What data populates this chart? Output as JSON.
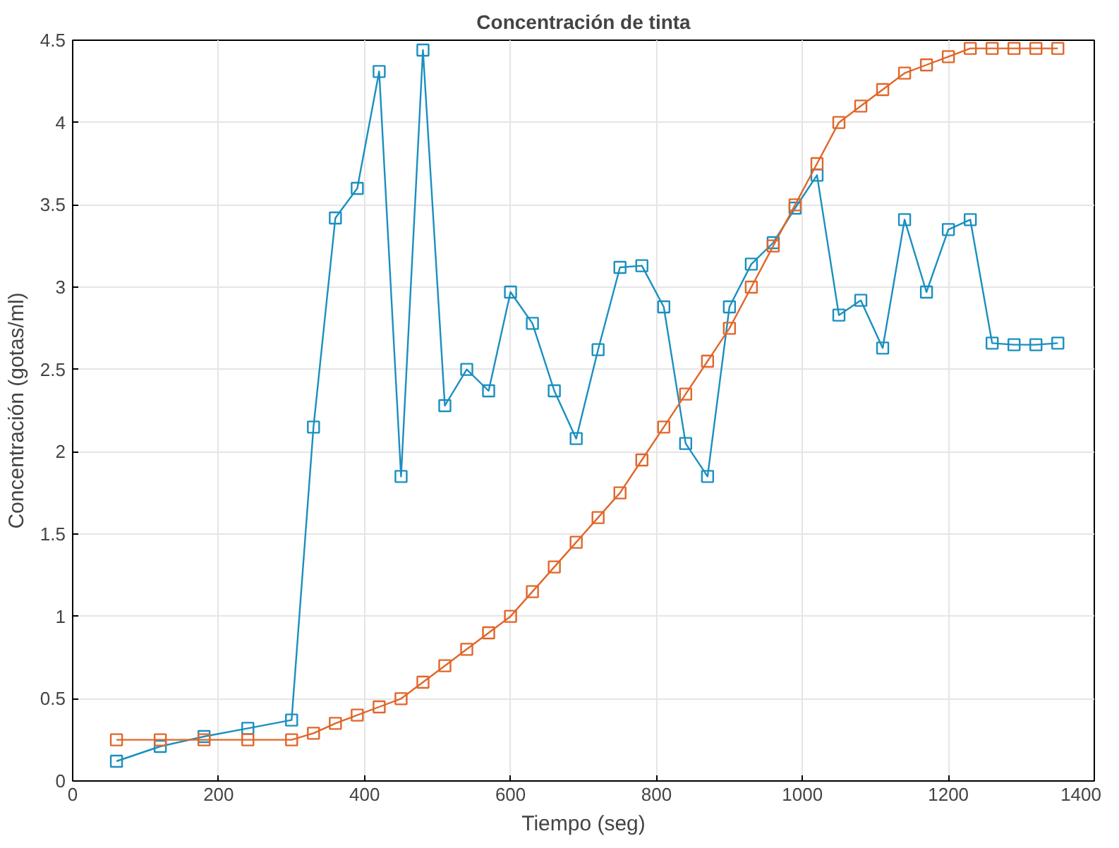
{
  "chart_data": {
    "type": "line",
    "title": "Concentración de tinta",
    "xlabel": "Tiempo (seg)",
    "ylabel": "Concentración (gotas/ml)",
    "x": [
      60,
      120,
      180,
      240,
      300,
      330,
      360,
      390,
      420,
      450,
      480,
      510,
      540,
      570,
      600,
      630,
      660,
      690,
      720,
      750,
      780,
      810,
      840,
      870,
      900,
      930,
      960,
      990,
      1020,
      1050,
      1080,
      1110,
      1140,
      1170,
      1200,
      1230,
      1260,
      1290,
      1320,
      1350
    ],
    "series": [
      {
        "color": "#1a8fc0",
        "values": [
          0.12,
          0.21,
          0.27,
          0.32,
          0.37,
          2.15,
          3.42,
          3.6,
          4.31,
          1.85,
          4.44,
          2.28,
          2.5,
          2.37,
          2.97,
          2.78,
          2.37,
          2.08,
          2.62,
          3.12,
          3.13,
          2.88,
          2.05,
          1.85,
          2.88,
          3.14,
          3.27,
          3.48,
          3.68,
          2.83,
          2.92,
          2.63,
          3.41,
          2.97,
          3.35,
          3.41,
          2.66,
          2.65,
          2.65,
          2.66
        ]
      },
      {
        "color": "#e0662a",
        "values": [
          0.25,
          0.25,
          0.25,
          0.25,
          0.25,
          0.29,
          0.35,
          0.4,
          0.45,
          0.5,
          0.6,
          0.7,
          0.8,
          0.9,
          1.0,
          1.15,
          1.3,
          1.45,
          1.6,
          1.75,
          1.95,
          2.15,
          2.35,
          2.55,
          2.75,
          3.0,
          3.25,
          3.5,
          3.75,
          4.0,
          4.1,
          4.2,
          4.3,
          4.35,
          4.4,
          4.45,
          4.45,
          4.45,
          4.45,
          4.45
        ]
      }
    ],
    "xlim": [
      0,
      1400
    ],
    "xticks": [
      0,
      200,
      400,
      600,
      800,
      1000,
      1200,
      1400
    ],
    "ylim": [
      0,
      4.5
    ],
    "yticks": [
      0,
      0.5,
      1,
      1.5,
      2,
      2.5,
      3,
      3.5,
      4,
      4.5
    ],
    "grid": true,
    "marker": "square",
    "line_style": "solid"
  }
}
